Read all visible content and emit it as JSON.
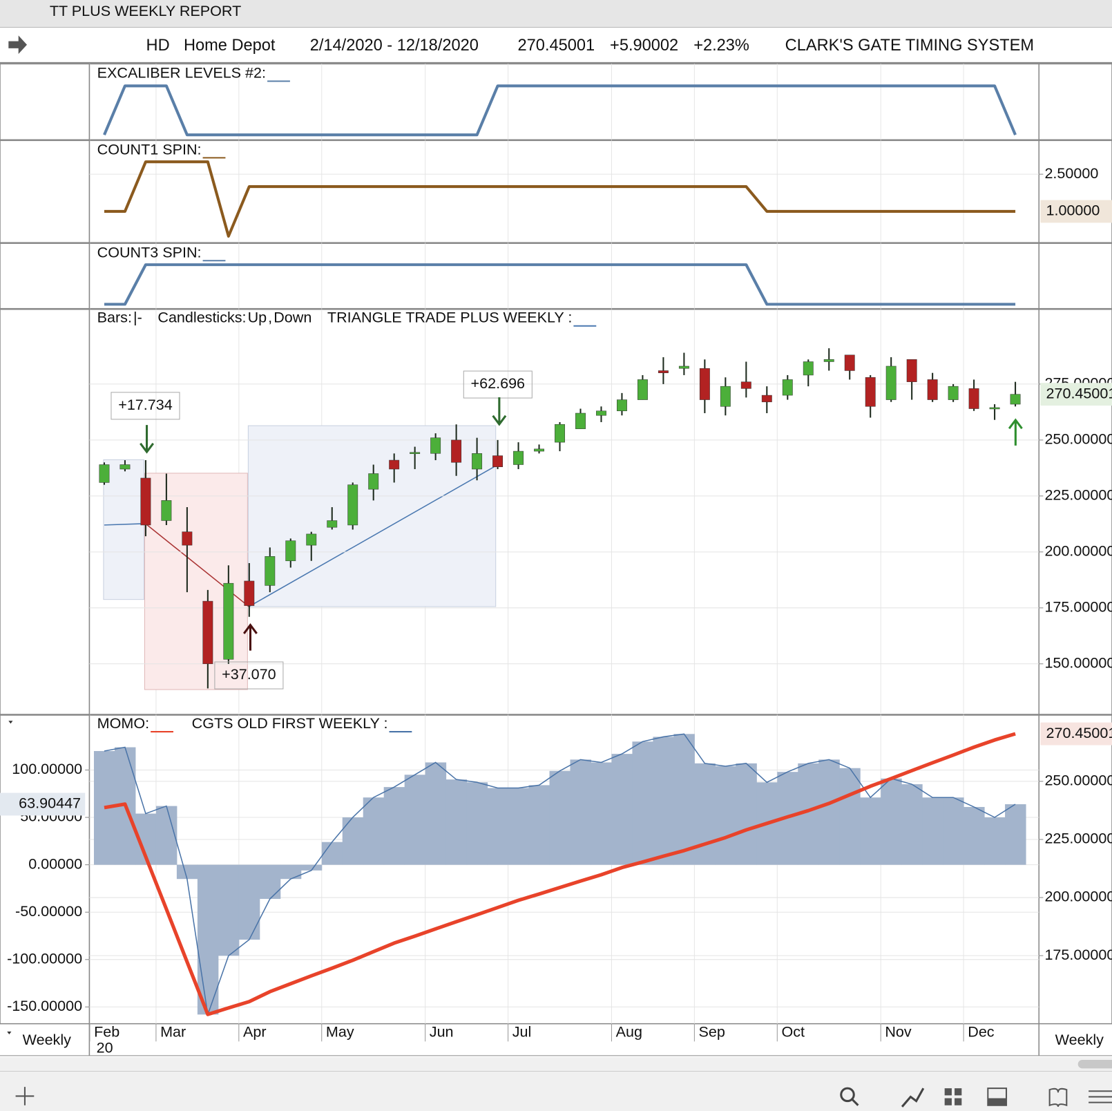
{
  "window_title": "TT PLUS WEEKLY REPORT",
  "header": {
    "symbol": "HD",
    "name": "Home Depot",
    "date_range": "2/14/2020 - 12/18/2020",
    "price": "270.45001",
    "change": "+5.90002",
    "change_pct": "+2.23%",
    "system": "CLARK'S GATE TIMING SYSTEM"
  },
  "x_axis": {
    "xlim": [
      -0.72,
      45.14
    ],
    "xticks": [
      {
        "value": -0.7,
        "label": "Feb"
      },
      {
        "value": 2.5,
        "label": "Mar"
      },
      {
        "value": 6.5,
        "label": "Apr"
      },
      {
        "value": 10.5,
        "label": "May"
      },
      {
        "value": 15.5,
        "label": "Jun"
      },
      {
        "value": 19.5,
        "label": "Jul"
      },
      {
        "value": 24.5,
        "label": "Aug"
      },
      {
        "value": 28.5,
        "label": "Sep"
      },
      {
        "value": 32.5,
        "label": "Oct"
      },
      {
        "value": 37.5,
        "label": "Nov"
      },
      {
        "value": 41.5,
        "label": "Dec"
      }
    ],
    "year_label": "20",
    "period": "Weekly"
  },
  "chart_data": [
    {
      "type": "line",
      "title": "EXCALIBER LEVELS #2:",
      "color": "#5a7fa8",
      "ylim": [
        -0.1,
        1.45
      ],
      "values": [
        0,
        1,
        1,
        1,
        0,
        0,
        0,
        0,
        0,
        0,
        0,
        0,
        0,
        0,
        0,
        0,
        0,
        0,
        0,
        1,
        1,
        1,
        1,
        1,
        1,
        1,
        1,
        1,
        1,
        1,
        1,
        1,
        1,
        1,
        1,
        1,
        1,
        1,
        1,
        1,
        1,
        1,
        1,
        1,
        0
      ]
    },
    {
      "type": "line",
      "title": "COUNT1 SPIN:",
      "color": "#8b5a1e",
      "ylim": [
        -0.26,
        3.86
      ],
      "yticks": [
        {
          "value": 2.5,
          "label": "2.50000"
        }
      ],
      "last_label": "1.00000",
      "values": [
        1,
        1,
        3,
        3,
        3,
        3,
        0,
        2,
        2,
        2,
        2,
        2,
        2,
        2,
        2,
        2,
        2,
        2,
        2,
        2,
        2,
        2,
        2,
        2,
        2,
        2,
        2,
        2,
        2,
        2,
        2,
        2,
        1,
        1,
        1,
        1,
        1,
        1,
        1,
        1,
        1,
        1,
        1,
        1,
        1
      ]
    },
    {
      "type": "line",
      "title": "COUNT3 SPIN:",
      "color": "#5a7fa8",
      "ylim": [
        -0.11,
        1.54
      ],
      "values": [
        0,
        0,
        1,
        1,
        1,
        1,
        1,
        1,
        1,
        1,
        1,
        1,
        1,
        1,
        1,
        1,
        1,
        1,
        1,
        1,
        1,
        1,
        1,
        1,
        1,
        1,
        1,
        1,
        1,
        1,
        1,
        1,
        0,
        0,
        0,
        0,
        0,
        0,
        0,
        0,
        0,
        0,
        0,
        0,
        0
      ]
    },
    {
      "type": "candlestick",
      "legend": {
        "bars": "Bars:",
        "bars_symbol": "|-",
        "candles": "Candlesticks:",
        "up": "Up",
        "separator": ",",
        "down": "Down",
        "triangle": "TRIANGLE TRADE PLUS WEEKLY :"
      },
      "up_color": "#4caf3a",
      "down_color": "#b22222",
      "line_color": "#4a78b0",
      "ylim": [
        127.4,
        308.4
      ],
      "yticks": [
        {
          "value": 150,
          "label": "150.00000"
        },
        {
          "value": 175,
          "label": "175.00000"
        },
        {
          "value": 200,
          "label": "200.00000"
        },
        {
          "value": 225,
          "label": "225.00000"
        },
        {
          "value": 250,
          "label": "250.00000"
        },
        {
          "value": 275,
          "label": "275.00000"
        }
      ],
      "last_label": "270.45001",
      "annotations": [
        "+17.734",
        "+62.696",
        "+37.070"
      ],
      "open": [
        231,
        237,
        233,
        214,
        209,
        178,
        152,
        187,
        185,
        196,
        203,
        211,
        212,
        228,
        241,
        244,
        244,
        250,
        237,
        243,
        239,
        245,
        249,
        255,
        261,
        263,
        268,
        281,
        282,
        282,
        265,
        276,
        270,
        270,
        279,
        285,
        288,
        278,
        268,
        286,
        277,
        268,
        273,
        264,
        266
      ],
      "high": [
        240,
        241,
        241,
        235,
        220,
        183,
        194,
        195,
        202,
        206,
        209,
        220,
        231,
        239,
        244,
        247,
        253,
        257,
        251,
        250,
        249,
        248,
        258,
        264,
        265,
        271,
        279,
        287,
        289,
        286,
        278,
        285,
        274,
        279,
        286,
        291,
        288,
        279,
        287,
        286,
        280,
        275,
        277,
        266,
        276
      ],
      "low": [
        230,
        236,
        207,
        212,
        182,
        139,
        150,
        171,
        182,
        193,
        196,
        210,
        210,
        223,
        231,
        237,
        241,
        234,
        232,
        237,
        237,
        244,
        245,
        255,
        258,
        261,
        268,
        275,
        279,
        262,
        261,
        269,
        262,
        268,
        274,
        281,
        277,
        260,
        267,
        268,
        267,
        267,
        263,
        259,
        265
      ],
      "close": [
        239,
        239,
        212,
        223,
        203,
        150,
        186,
        176,
        198,
        205,
        208,
        214,
        230,
        235,
        237,
        244.5,
        251,
        240,
        244,
        238,
        245,
        246,
        257,
        262,
        263,
        268,
        277,
        280,
        283,
        268,
        274,
        273,
        267,
        277,
        285,
        286,
        281,
        265,
        283,
        276,
        268,
        274,
        264,
        264.5,
        270.45
      ]
    },
    {
      "type": "bar",
      "ylim": [
        -167.7,
        157.9
      ],
      "yticks": [
        {
          "value": -150,
          "label": "-150.00000"
        },
        {
          "value": -100,
          "label": "-100.00000"
        },
        {
          "value": -50,
          "label": "-50.00000"
        },
        {
          "value": 0,
          "label": "0.00000"
        },
        {
          "value": 50,
          "label": "50.00000"
        },
        {
          "value": 100,
          "label": "100.00000"
        }
      ],
      "y2lim": [
        145.7,
        278.5
      ],
      "y2ticks": [
        {
          "value": 175,
          "label": "175.00000"
        },
        {
          "value": 200,
          "label": "200.00000"
        },
        {
          "value": 225,
          "label": "225.00000"
        },
        {
          "value": 250,
          "label": "250.00000"
        }
      ],
      "series": [
        {
          "name": "MOMO:",
          "color": "#e8432a",
          "axis": "y2",
          "last_label": "270.45001",
          "values": [
            238.7,
            240.2,
            217.6,
            195,
            172.3,
            149.7,
            152.5,
            155.2,
            159.5,
            162.9,
            166.3,
            169.6,
            173,
            176.7,
            180.4,
            183.4,
            186.5,
            189.6,
            192.6,
            195.7,
            198.8,
            201.5,
            204.3,
            207.1,
            209.8,
            212.9,
            215.3,
            217.8,
            220.2,
            223,
            225.8,
            229.1,
            231.9,
            234.7,
            237.4,
            240.5,
            244.2,
            247.9,
            251.2,
            254.6,
            258,
            261.3,
            264.7,
            267.8,
            270.45
          ]
        },
        {
          "name": "CGTS OLD FIRST WEEKLY :",
          "color": "#4a74a8",
          "fill": "#a3b4cc",
          "last_label": "63.90447",
          "values": [
            120,
            124,
            54,
            62,
            -15,
            -158,
            -96,
            -79,
            -36,
            -15,
            -6,
            24,
            50,
            71,
            82,
            95,
            108,
            90,
            87,
            81,
            81,
            84,
            99,
            111,
            108,
            117,
            130,
            135,
            138,
            107,
            104,
            107,
            87,
            98,
            107,
            111,
            102,
            71,
            91,
            85,
            71,
            71,
            61,
            50,
            63.9
          ]
        }
      ]
    }
  ]
}
